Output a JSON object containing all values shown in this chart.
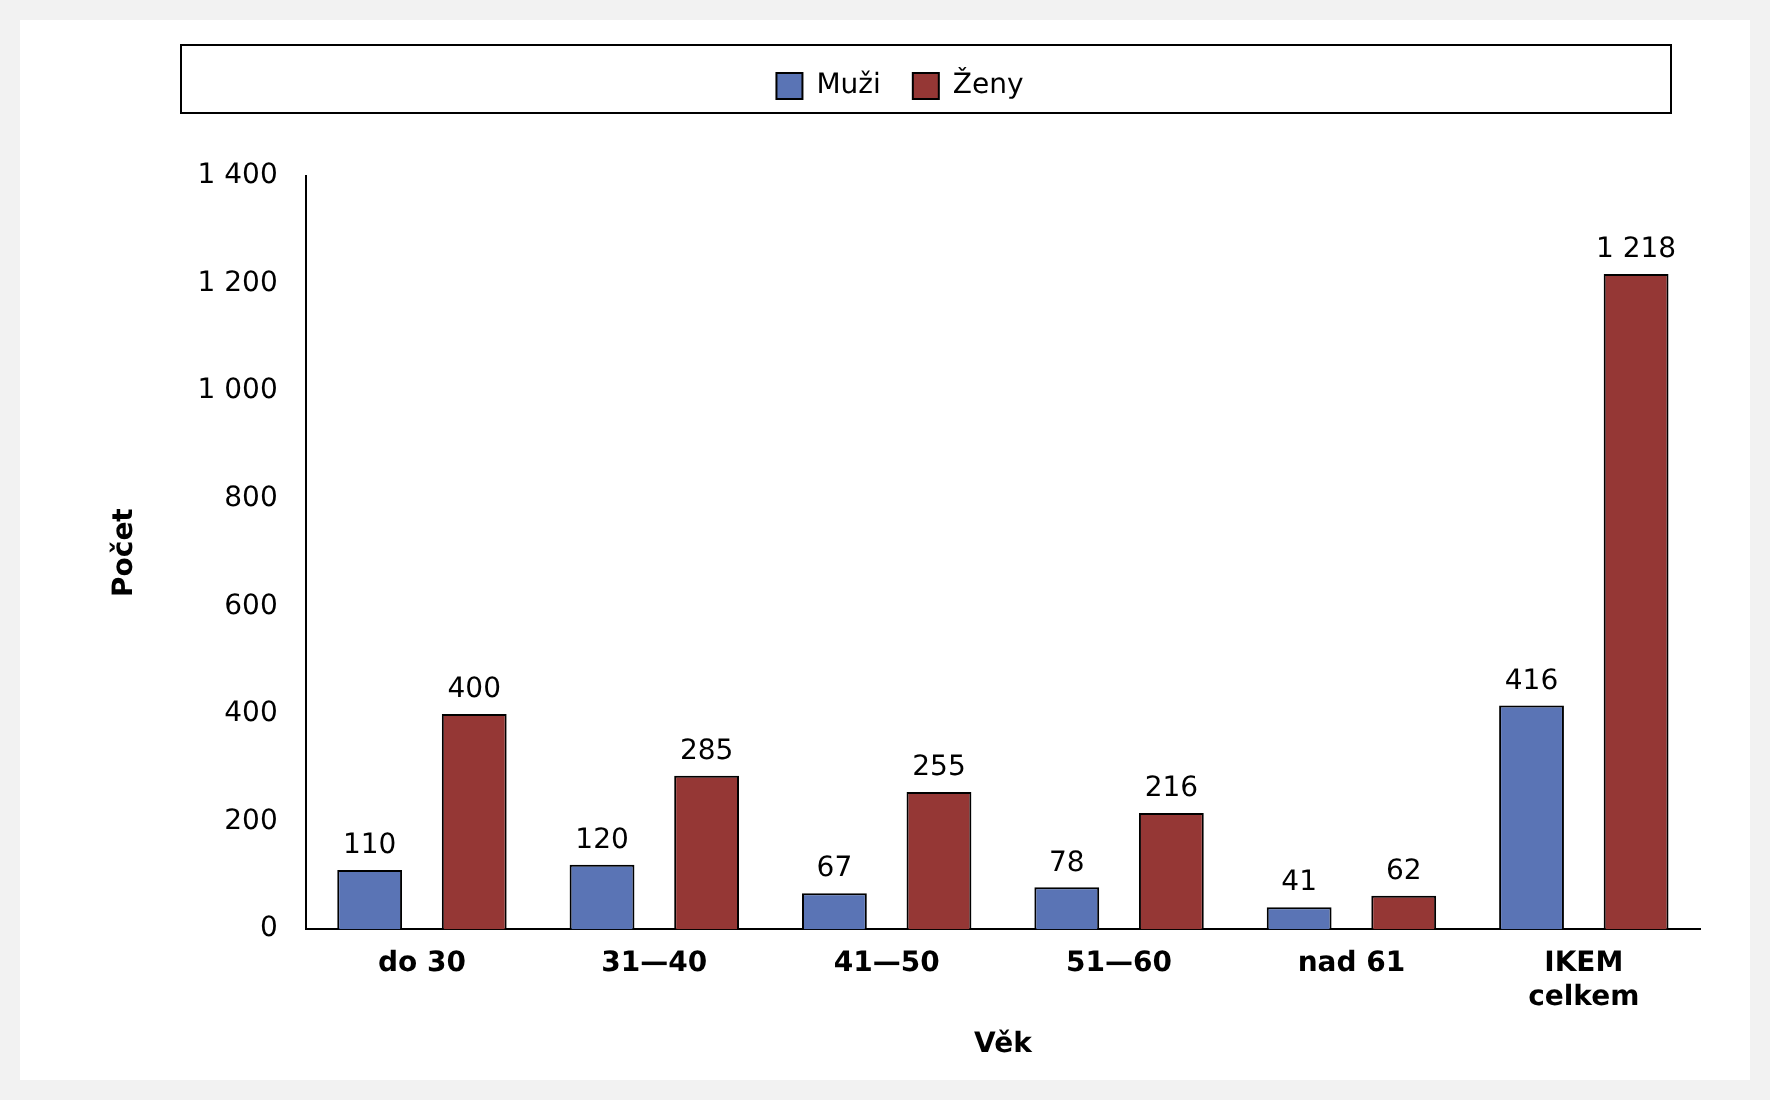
{
  "chart_data": {
    "type": "bar",
    "xlabel": "Věk",
    "ylabel": "Počet",
    "categories": [
      "do 30",
      "31—40",
      "41—50",
      "51—60",
      "nad 61",
      "IKEM celkem"
    ],
    "series": [
      {
        "name": "Muži",
        "color": "#5a74b5",
        "values": [
          110,
          120,
          67,
          78,
          41,
          416
        ]
      },
      {
        "name": "Ženy",
        "color": "#953735",
        "values": [
          400,
          285,
          255,
          216,
          62,
          1218
        ]
      }
    ],
    "ylim": [
      0,
      1400
    ],
    "yticks": [
      0,
      {
        "value": 200,
        "label": "200"
      },
      400,
      600,
      800,
      {
        "value": 1000,
        "label": "1 000"
      },
      {
        "value": 1200,
        "label": "1 200"
      },
      {
        "value": 1400,
        "label": "1 400"
      }
    ],
    "data_labels": true,
    "grid": false,
    "legend": "top"
  }
}
